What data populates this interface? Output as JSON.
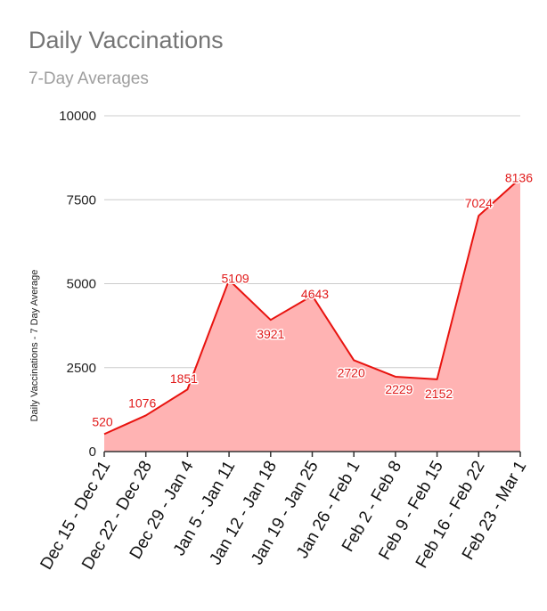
{
  "chart_data": {
    "type": "area",
    "title": "Daily Vaccinations",
    "subtitle": "7-Day Averages",
    "xlabel": "",
    "ylabel": "Daily Vaccinations - 7 Day Average",
    "categories": [
      "Dec 15 - Dec 21",
      "Dec 22 - Dec 28",
      "Dec 29 - Jan 4",
      "Jan 5 - Jan 11",
      "Jan 12 - Jan 18",
      "Jan 19 - Jan 25",
      "Jan 26 - Feb 1",
      "Feb 2 - Feb 8",
      "Feb 9 - Feb 15",
      "Feb 16 - Feb 22",
      "Feb 23 - Mar 1"
    ],
    "values": [
      520,
      1076,
      1851,
      5109,
      3921,
      4643,
      2720,
      2229,
      2152,
      7024,
      8136
    ],
    "ylim": [
      0,
      10000
    ],
    "yticks": [
      0,
      2500,
      5000,
      7500,
      10000
    ],
    "grid": true,
    "line_color": "#e8130f",
    "fill_color": "#ffb3b3",
    "label_color": "#e11a1a"
  }
}
